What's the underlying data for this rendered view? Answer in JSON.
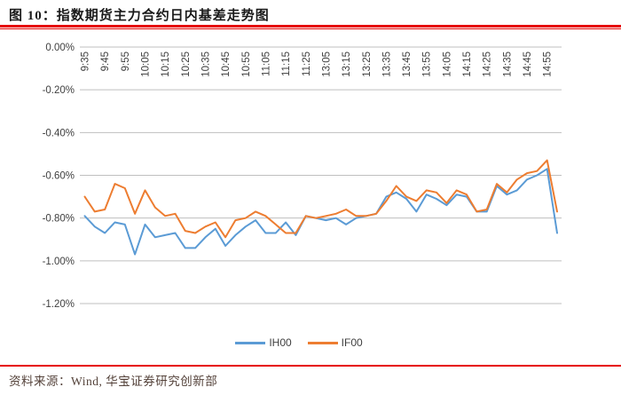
{
  "header": {
    "title": "图 10：指数期货主力合约日内基差走势图"
  },
  "footer": {
    "source_text": "资料来源：Wind, 华宝证券研究创新部"
  },
  "colors": {
    "rule_red": "#e60000",
    "gridline": "#bfbfbf",
    "axis_text": "#404040",
    "title_text": "#1a1a1a",
    "footer_text": "#54423a",
    "ih00": "#5b9bd5",
    "if00": "#ed7d31"
  },
  "chart_data": {
    "type": "line",
    "title": "图 10：指数期货主力合约日内基差走势图",
    "xlabel": "",
    "ylabel": "",
    "grid": "horizontal",
    "legend_position": "bottom",
    "ylim": [
      -1.2,
      0.0
    ],
    "y_tick_labels": [
      "0.00%",
      "-0.20%",
      "-0.40%",
      "-0.60%",
      "-0.80%",
      "-1.00%",
      "-1.20%"
    ],
    "x": [
      "9:35",
      "9:40",
      "9:45",
      "9:50",
      "9:55",
      "10:00",
      "10:05",
      "10:10",
      "10:15",
      "10:20",
      "10:25",
      "10:30",
      "10:35",
      "10:40",
      "10:45",
      "10:50",
      "10:55",
      "11:00",
      "11:05",
      "11:10",
      "11:15",
      "11:20",
      "11:25",
      "11:30",
      "13:05",
      "13:10",
      "13:15",
      "13:20",
      "13:25",
      "13:30",
      "13:35",
      "13:40",
      "13:45",
      "13:50",
      "13:55",
      "14:00",
      "14:05",
      "14:10",
      "14:15",
      "14:20",
      "14:25",
      "14:30",
      "14:35",
      "14:40",
      "14:45",
      "14:50",
      "14:55",
      "15:00"
    ],
    "x_tick_labels": [
      "9:35",
      "9:45",
      "9:55",
      "10:05",
      "10:15",
      "10:25",
      "10:35",
      "10:45",
      "10:55",
      "11:05",
      "11:15",
      "11:25",
      "13:05",
      "13:15",
      "13:25",
      "13:35",
      "13:45",
      "13:55",
      "14:05",
      "14:15",
      "14:25",
      "14:35",
      "14:45",
      "14:55"
    ],
    "series": [
      {
        "name": "IH00",
        "color": "#5b9bd5",
        "values": [
          -0.79,
          -0.84,
          -0.87,
          -0.82,
          -0.83,
          -0.97,
          -0.83,
          -0.89,
          -0.88,
          -0.87,
          -0.94,
          -0.94,
          -0.89,
          -0.85,
          -0.93,
          -0.88,
          -0.84,
          -0.81,
          -0.87,
          -0.87,
          -0.82,
          -0.88,
          -0.79,
          -0.8,
          -0.81,
          -0.8,
          -0.83,
          -0.8,
          -0.79,
          -0.78,
          -0.7,
          -0.68,
          -0.71,
          -0.77,
          -0.69,
          -0.71,
          -0.74,
          -0.69,
          -0.7,
          -0.77,
          -0.77,
          -0.65,
          -0.69,
          -0.67,
          -0.62,
          -0.6,
          -0.57,
          -0.87
        ]
      },
      {
        "name": "IF00",
        "color": "#ed7d31",
        "values": [
          -0.7,
          -0.77,
          -0.76,
          -0.64,
          -0.66,
          -0.78,
          -0.67,
          -0.75,
          -0.79,
          -0.78,
          -0.86,
          -0.87,
          -0.84,
          -0.82,
          -0.89,
          -0.81,
          -0.8,
          -0.77,
          -0.79,
          -0.83,
          -0.87,
          -0.87,
          -0.79,
          -0.8,
          -0.79,
          -0.78,
          -0.76,
          -0.79,
          -0.79,
          -0.78,
          -0.72,
          -0.65,
          -0.7,
          -0.72,
          -0.67,
          -0.68,
          -0.73,
          -0.67,
          -0.69,
          -0.77,
          -0.76,
          -0.64,
          -0.68,
          -0.62,
          -0.59,
          -0.58,
          -0.53,
          -0.77
        ]
      }
    ]
  }
}
